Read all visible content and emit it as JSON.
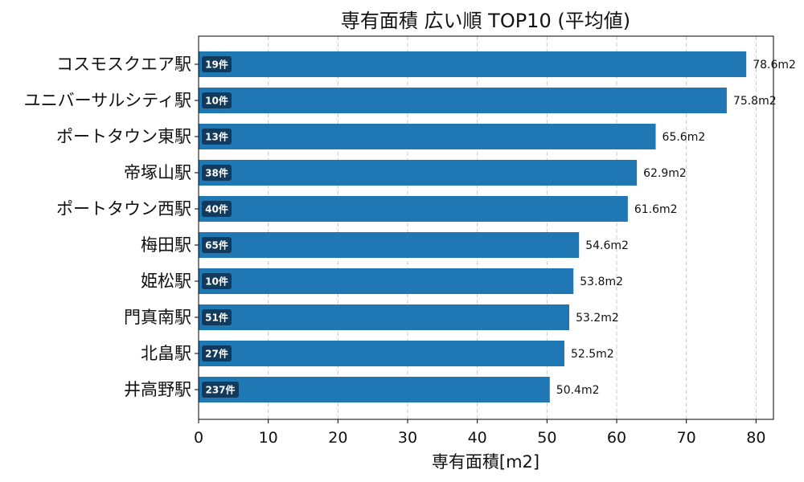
{
  "chart_data": {
    "type": "bar",
    "orientation": "horizontal",
    "title": "専有面積 広い順 TOP10 (平均値)",
    "xlabel": "専有面積[m2]",
    "ylabel": "",
    "xlim": [
      0,
      82.5
    ],
    "xticks": [
      0,
      10,
      20,
      30,
      40,
      50,
      60,
      70,
      80
    ],
    "grid": "x-dashed",
    "categories": [
      "コスモスクエア駅",
      "ユニバーサルシティ駅",
      "ポートタウン東駅",
      "帝塚山駅",
      "ポートタウン西駅",
      "梅田駅",
      "姫松駅",
      "門真南駅",
      "北畠駅",
      "井高野駅"
    ],
    "values": [
      78.6,
      75.8,
      65.6,
      62.9,
      61.6,
      54.6,
      53.8,
      53.2,
      52.5,
      50.4
    ],
    "value_labels": [
      "78.6m2",
      "75.8m2",
      "65.6m2",
      "62.9m2",
      "61.6m2",
      "54.6m2",
      "53.8m2",
      "53.2m2",
      "52.5m2",
      "50.4m2"
    ],
    "counts": [
      "19件",
      "10件",
      "13件",
      "38件",
      "40件",
      "65件",
      "10件",
      "51件",
      "27件",
      "237件"
    ],
    "colors": {
      "bar": "#1f77b4",
      "badge": "#123a5c"
    }
  }
}
